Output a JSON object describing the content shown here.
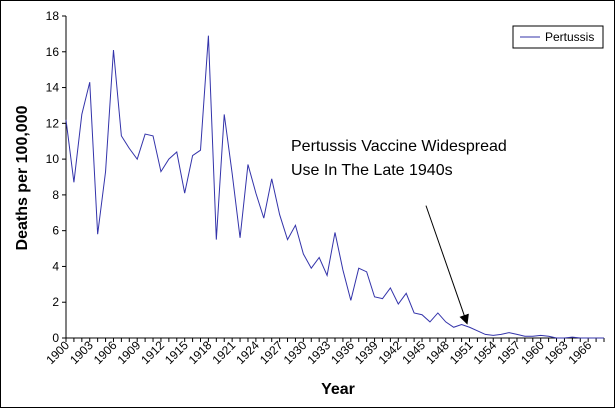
{
  "chart_data": {
    "type": "line",
    "xlabel": "Year",
    "ylabel": "Deaths per 100,000",
    "ylim": [
      0,
      18
    ],
    "yticks": [
      0,
      2,
      4,
      6,
      8,
      10,
      12,
      14,
      16,
      18
    ],
    "xlim": [
      1900,
      1968
    ],
    "xtick_labels": [
      "1900",
      "1903",
      "1906",
      "1909",
      "1912",
      "1915",
      "1918",
      "1921",
      "1924",
      "1927",
      "1930",
      "1933",
      "1936",
      "1939",
      "1942",
      "1945",
      "1948",
      "1951",
      "1954",
      "1957",
      "1960",
      "1963",
      "1966"
    ],
    "grid": false,
    "legend_position": "top-right",
    "series": [
      {
        "name": "Pertussis",
        "color": "#3333aa",
        "x": [
          1900,
          1901,
          1902,
          1903,
          1904,
          1905,
          1906,
          1907,
          1908,
          1909,
          1910,
          1911,
          1912,
          1913,
          1914,
          1915,
          1916,
          1917,
          1918,
          1919,
          1920,
          1921,
          1922,
          1923,
          1924,
          1925,
          1926,
          1927,
          1928,
          1929,
          1930,
          1931,
          1932,
          1933,
          1934,
          1935,
          1936,
          1937,
          1938,
          1939,
          1940,
          1941,
          1942,
          1943,
          1944,
          1945,
          1946,
          1947,
          1948,
          1949,
          1950,
          1951,
          1952,
          1953,
          1954,
          1955,
          1956,
          1957,
          1958,
          1959,
          1960,
          1961,
          1962,
          1963,
          1964,
          1965,
          1966,
          1967,
          1968
        ],
        "values": [
          12.2,
          8.7,
          12.5,
          14.3,
          5.8,
          9.3,
          16.1,
          11.3,
          10.6,
          10.0,
          11.4,
          11.3,
          9.3,
          10.0,
          10.4,
          8.1,
          10.2,
          10.5,
          16.9,
          5.5,
          12.5,
          9.2,
          5.6,
          9.7,
          8.1,
          6.7,
          8.9,
          6.9,
          5.5,
          6.3,
          4.7,
          3.9,
          4.5,
          3.5,
          5.9,
          3.8,
          2.1,
          3.9,
          3.7,
          2.3,
          2.2,
          2.8,
          1.9,
          2.5,
          1.4,
          1.3,
          0.9,
          1.4,
          0.9,
          0.6,
          0.75,
          0.6,
          0.4,
          0.2,
          0.15,
          0.2,
          0.3,
          0.2,
          0.1,
          0.1,
          0.15,
          0.1,
          0.0,
          0.0,
          0.05,
          0.0,
          0.0,
          0.0,
          0.0
        ]
      }
    ],
    "annotation": {
      "lines": [
        "Pertussis  Vaccine Widespread",
        "Use In The Late 1940s"
      ],
      "arrow_from": [
        1945.5,
        7.4
      ],
      "arrow_to": [
        1950.7,
        0.8
      ]
    }
  }
}
